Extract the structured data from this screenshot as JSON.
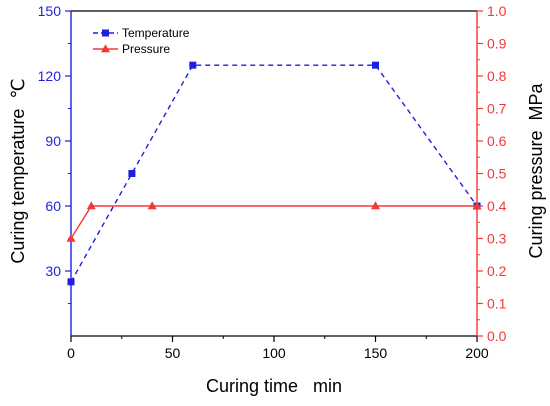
{
  "chart_data": {
    "type": "line",
    "xlabel": "Curing time   min",
    "ylabel_left": "Curing temperature  ℃",
    "ylabel_right": "Curing pressure  MPa",
    "xlim": [
      0,
      200
    ],
    "ylim_left": [
      0,
      150
    ],
    "ylim_right": [
      0,
      1.0
    ],
    "x_ticks": [
      0,
      50,
      100,
      150,
      200
    ],
    "y_left_ticks": [
      30,
      60,
      90,
      120,
      150
    ],
    "y_right_ticks": [
      0.0,
      0.1,
      0.2,
      0.3,
      0.4,
      0.5,
      0.6,
      0.7,
      0.8,
      0.9,
      1.0
    ],
    "grid": false,
    "legend_position": "top-left",
    "series": [
      {
        "name": "Temperature",
        "axis": "left",
        "color": "#1f1fe0",
        "line_style": "dashed",
        "marker": "square",
        "x": [
          0,
          30,
          60,
          150,
          200
        ],
        "y": [
          25,
          75,
          125,
          125,
          60
        ]
      },
      {
        "name": "Pressure",
        "axis": "right",
        "color": "#f03a3a",
        "line_style": "solid",
        "marker": "triangle",
        "x": [
          0,
          10,
          40,
          150,
          200
        ],
        "y": [
          0.3,
          0.4,
          0.4,
          0.4,
          0.4
        ]
      }
    ]
  }
}
